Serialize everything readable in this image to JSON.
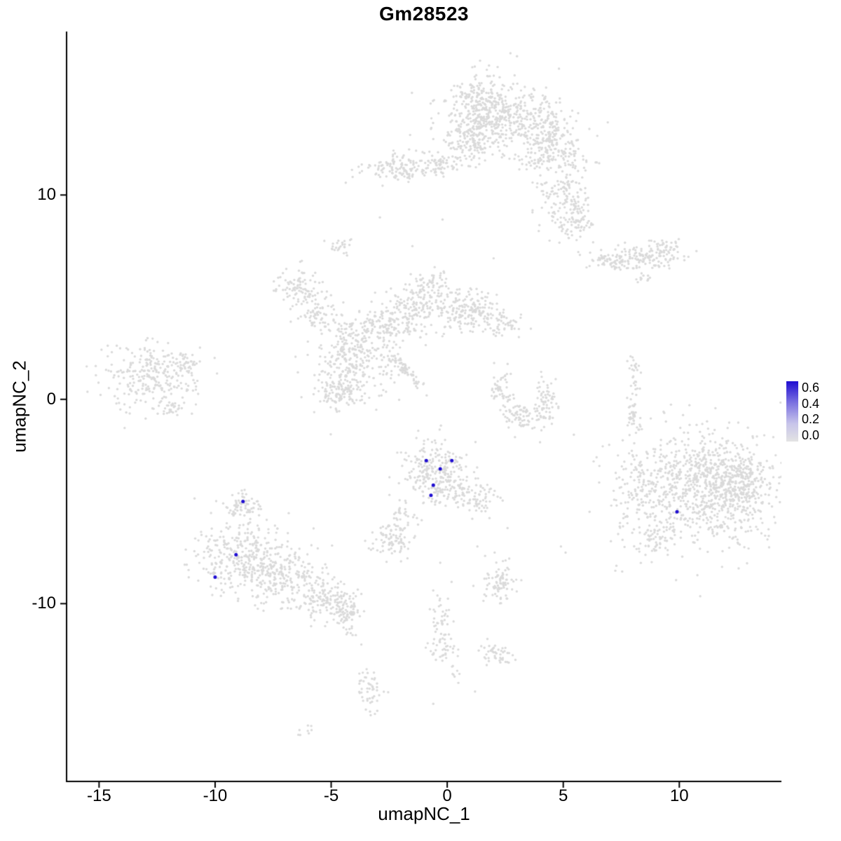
{
  "chart_data": {
    "type": "scatter",
    "title": "Gm28523",
    "xlabel": "umapNC_1",
    "ylabel": "umapNC_2",
    "xlim": [
      -16.4,
      14.4
    ],
    "ylim": [
      -18.7,
      18.0
    ],
    "xticks": [
      -15,
      -10,
      -5,
      0,
      5,
      10
    ],
    "yticks": [
      -10,
      0,
      10
    ],
    "grid": false,
    "background": "#FFFFFF",
    "point_color_low": "#DADADA",
    "point_color_high": "#1F0DD1",
    "seed": 20523,
    "legend": {
      "position": "right",
      "ticks": [
        "0.6",
        "0.4",
        "0.2",
        "0.0"
      ],
      "gradient_stops": [
        "#1F0DD1",
        "#7A70E0 35%",
        "#C7C4EA 70%",
        "#E3E3E3"
      ]
    },
    "cluster_format": "each cluster: [center_x, center_y, sigma_x, sigma_y, n_points, optional_rotation_deg]",
    "background_clusters": [
      [
        1.9,
        14.0,
        1.0,
        0.9,
        550
      ],
      [
        1.0,
        12.5,
        0.5,
        0.5,
        90
      ],
      [
        -0.3,
        11.6,
        0.45,
        0.3,
        50
      ],
      [
        -1.9,
        11.4,
        0.85,
        0.35,
        140
      ],
      [
        4.2,
        13.5,
        0.5,
        0.6,
        100
      ],
      [
        4.6,
        12.2,
        0.8,
        0.7,
        200
      ],
      [
        5.0,
        9.9,
        0.55,
        0.75,
        140
      ],
      [
        5.6,
        8.5,
        0.35,
        0.4,
        50
      ],
      [
        7.0,
        6.8,
        0.5,
        0.25,
        60
      ],
      [
        8.7,
        6.9,
        0.8,
        0.3,
        120
      ],
      [
        9.4,
        7.4,
        0.3,
        0.2,
        30
      ],
      [
        8.5,
        5.9,
        0.25,
        0.15,
        12
      ],
      [
        -6.6,
        5.5,
        0.5,
        0.45,
        90
      ],
      [
        -5.6,
        4.2,
        0.4,
        0.4,
        60
      ],
      [
        -4.6,
        7.4,
        0.3,
        0.2,
        25
      ],
      [
        -4.2,
        2.4,
        0.75,
        0.95,
        260
      ],
      [
        -4.5,
        0.3,
        0.5,
        0.5,
        110
      ],
      [
        -2.7,
        3.8,
        0.45,
        0.4,
        70
      ],
      [
        -1.1,
        4.6,
        0.8,
        0.55,
        170
      ],
      [
        1.0,
        4.3,
        0.7,
        0.5,
        150
      ],
      [
        2.4,
        3.7,
        0.4,
        0.35,
        50
      ],
      [
        -0.6,
        5.8,
        0.35,
        0.25,
        35
      ],
      [
        -1.9,
        1.6,
        0.75,
        0.12,
        70,
        -50
      ],
      [
        -1.7,
        3.3,
        0.6,
        0.4,
        45
      ],
      [
        -3.5,
        1.5,
        0.8,
        0.8,
        60
      ],
      [
        -12.9,
        1.2,
        1.0,
        0.8,
        260
      ],
      [
        -11.2,
        1.7,
        0.3,
        0.3,
        40
      ],
      [
        -11.9,
        -0.5,
        0.3,
        0.2,
        25
      ],
      [
        2.3,
        0.6,
        0.25,
        0.5,
        50
      ],
      [
        3.2,
        -0.9,
        0.55,
        0.35,
        80
      ],
      [
        4.3,
        0.0,
        0.25,
        0.6,
        60
      ],
      [
        8.0,
        -0.3,
        0.15,
        0.95,
        55
      ],
      [
        8.1,
        1.7,
        0.15,
        0.2,
        10
      ],
      [
        11.2,
        -4.3,
        1.35,
        1.35,
        850
      ],
      [
        12.7,
        -4.0,
        0.5,
        0.8,
        150
      ],
      [
        8.4,
        -4.5,
        0.8,
        1.4,
        160
      ],
      [
        9.0,
        -6.9,
        0.4,
        0.4,
        50
      ],
      [
        -0.4,
        -3.6,
        0.75,
        0.75,
        280
      ],
      [
        1.2,
        -4.9,
        0.5,
        0.35,
        70
      ],
      [
        -2.0,
        -5.8,
        0.35,
        0.45,
        30
      ],
      [
        -2.4,
        -6.9,
        0.45,
        0.4,
        80
      ],
      [
        -8.8,
        -5.2,
        0.4,
        0.4,
        70
      ],
      [
        -8.9,
        -7.7,
        0.95,
        0.95,
        320
      ],
      [
        -6.9,
        -8.7,
        0.9,
        0.7,
        230
      ],
      [
        -5.1,
        -9.8,
        0.6,
        0.45,
        130
      ],
      [
        -4.3,
        -10.5,
        0.3,
        0.3,
        50
      ],
      [
        -4.2,
        -11.3,
        0.15,
        0.2,
        10
      ],
      [
        -0.3,
        -11.1,
        0.25,
        0.85,
        55
      ],
      [
        0.0,
        -12.3,
        0.25,
        0.2,
        20
      ],
      [
        2.3,
        -8.9,
        0.35,
        0.55,
        80
      ],
      [
        2.1,
        -12.5,
        0.4,
        0.3,
        45
      ],
      [
        -3.3,
        -14.2,
        0.3,
        0.55,
        50
      ],
      [
        -6.1,
        -16.2,
        0.2,
        0.15,
        8
      ],
      [
        0.4,
        -13.5,
        0.15,
        0.2,
        8
      ]
    ],
    "sparse_points": [
      [
        4.0,
        -2.1
      ],
      [
        4.9,
        -7.2
      ],
      [
        5.1,
        -7.5
      ],
      [
        2.6,
        -6.3
      ],
      [
        -0.2,
        8.8
      ],
      [
        -2.9,
        8.9
      ],
      [
        -1.5,
        7.5
      ],
      [
        7.9,
        2.1
      ],
      [
        -11.0,
        -0.7
      ],
      [
        1.3,
        -7.2
      ],
      [
        -0.3,
        -8.0
      ],
      [
        -3.7,
        -12.0
      ],
      [
        -0.6,
        -14.9
      ],
      [
        1.2,
        -14.3
      ],
      [
        6.7,
        -2.3
      ],
      [
        2.0,
        6.9
      ]
    ],
    "highlighted_points": [
      [
        -0.9,
        -3.0,
        0.6
      ],
      [
        0.2,
        -3.0,
        0.6
      ],
      [
        -0.3,
        -3.4,
        0.6
      ],
      [
        -0.6,
        -4.2,
        0.6
      ],
      [
        -0.7,
        -4.7,
        0.6
      ],
      [
        -8.8,
        -5.0,
        0.6
      ],
      [
        -9.1,
        -7.6,
        0.6
      ],
      [
        -10.0,
        -8.7,
        0.6
      ],
      [
        9.9,
        -5.5,
        0.6
      ]
    ]
  }
}
